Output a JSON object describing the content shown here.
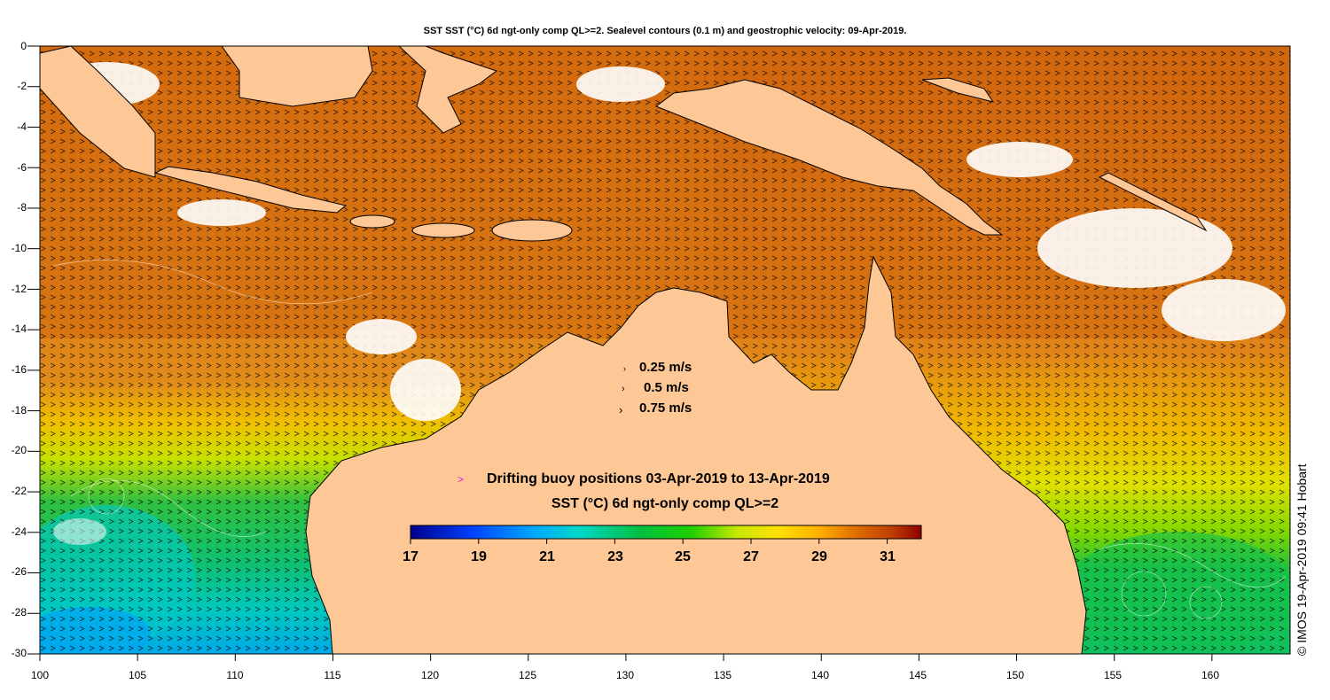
{
  "title": "SST SST (°C) 6d ngt-only comp QL>=2. Sealevel contours (0.1 m) and geostrophic velocity: 09-Apr-2019.",
  "y_axis": {
    "ticks": [
      0,
      -2,
      -4,
      -6,
      -8,
      -10,
      -12,
      -14,
      -16,
      -18,
      -20,
      -22,
      -24,
      -26,
      -28,
      -30
    ],
    "range": [
      -30,
      0
    ]
  },
  "x_axis": {
    "ticks": [
      100,
      105,
      110,
      115,
      120,
      125,
      130,
      135,
      140,
      145,
      150,
      155,
      160
    ],
    "range": [
      100,
      164
    ]
  },
  "velocity_legend": [
    {
      "label": "0.25 m/s",
      "speed": 0.25
    },
    {
      "label": "0.5 m/s",
      "speed": 0.5
    },
    {
      "label": "0.75 m/s",
      "speed": 0.75
    }
  ],
  "buoy_legend": {
    "marker": ">",
    "label": "Drifting buoy positions 03-Apr-2019 to 13-Apr-2019",
    "marker_color": "#e020e0"
  },
  "colorbar": {
    "title": "SST (°C) 6d ngt-only comp QL>=2",
    "range": [
      17,
      32
    ],
    "tick_labels": [
      "17",
      "19",
      "21",
      "23",
      "25",
      "27",
      "29",
      "31"
    ],
    "ticks": [
      17,
      19,
      21,
      23,
      25,
      27,
      29,
      31
    ],
    "colors": [
      "#00008b",
      "#0040ff",
      "#00a8ff",
      "#00d8c8",
      "#00c040",
      "#20d000",
      "#c8e800",
      "#ffe000",
      "#ffb000",
      "#ff9000",
      "#e07000",
      "#c04000",
      "#900000"
    ]
  },
  "credit": "© IMOS 19-Apr-2019 09:41 Hobart",
  "land_color": "#fdc896",
  "cloud_color": "#ffffff"
}
